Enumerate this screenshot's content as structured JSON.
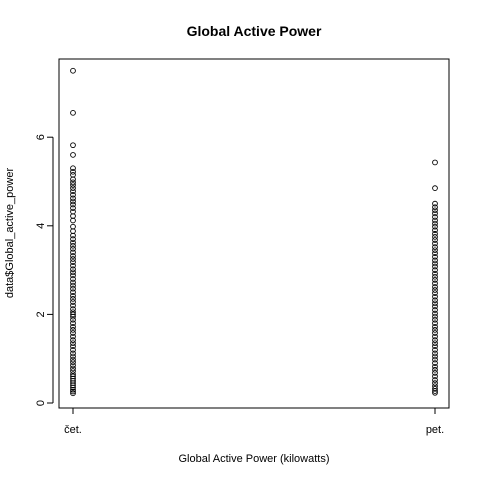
{
  "chart_data": {
    "type": "scatter",
    "title": "Global Active Power",
    "xlabel": "Global Active Power (kilowatts)",
    "ylabel": "data$Global_active_power",
    "categories": [
      "čet.",
      "pet."
    ],
    "yticks": [
      0,
      2,
      4,
      6
    ],
    "ylim": [
      0,
      7.6
    ],
    "grid": false,
    "legend": "none",
    "point_style": "open-circle",
    "series": [
      {
        "category": "čet.",
        "values": [
          7.5,
          6.55,
          5.82,
          5.6,
          5.3,
          5.22,
          5.15,
          5.05,
          4.98,
          4.92,
          4.85,
          4.78,
          4.7,
          4.62,
          4.55,
          4.48,
          4.4,
          4.32,
          4.22,
          4.12,
          3.98,
          3.88,
          3.78,
          3.7,
          3.62,
          3.55,
          3.48,
          3.4,
          3.32,
          3.25,
          3.18,
          3.1,
          3.02,
          2.95,
          2.88,
          2.8,
          2.72,
          2.65,
          2.58,
          2.5,
          2.42,
          2.35,
          2.28,
          2.2,
          2.12,
          2.05,
          2.0,
          1.95,
          1.88,
          1.8,
          1.72,
          1.65,
          1.58,
          1.5,
          1.42,
          1.35,
          1.28,
          1.2,
          1.12,
          1.05,
          0.98,
          0.92,
          0.85,
          0.78,
          0.72,
          0.65,
          0.6,
          0.55,
          0.5,
          0.45,
          0.4,
          0.35,
          0.3,
          0.26,
          0.22
        ]
      },
      {
        "category": "pet.",
        "values": [
          5.43,
          4.85,
          4.5,
          4.42,
          4.35,
          4.28,
          4.2,
          4.12,
          4.05,
          3.98,
          3.9,
          3.82,
          3.75,
          3.68,
          3.6,
          3.52,
          3.45,
          3.38,
          3.3,
          3.22,
          3.15,
          3.08,
          3.0,
          2.92,
          2.85,
          2.78,
          2.7,
          2.62,
          2.55,
          2.48,
          2.4,
          2.32,
          2.25,
          2.18,
          2.1,
          2.02,
          1.95,
          1.88,
          1.8,
          1.72,
          1.65,
          1.58,
          1.5,
          1.42,
          1.35,
          1.28,
          1.2,
          1.12,
          1.05,
          0.98,
          0.9,
          0.82,
          0.75,
          0.68,
          0.6,
          0.52,
          0.45,
          0.38,
          0.32,
          0.27,
          0.23
        ]
      }
    ]
  }
}
